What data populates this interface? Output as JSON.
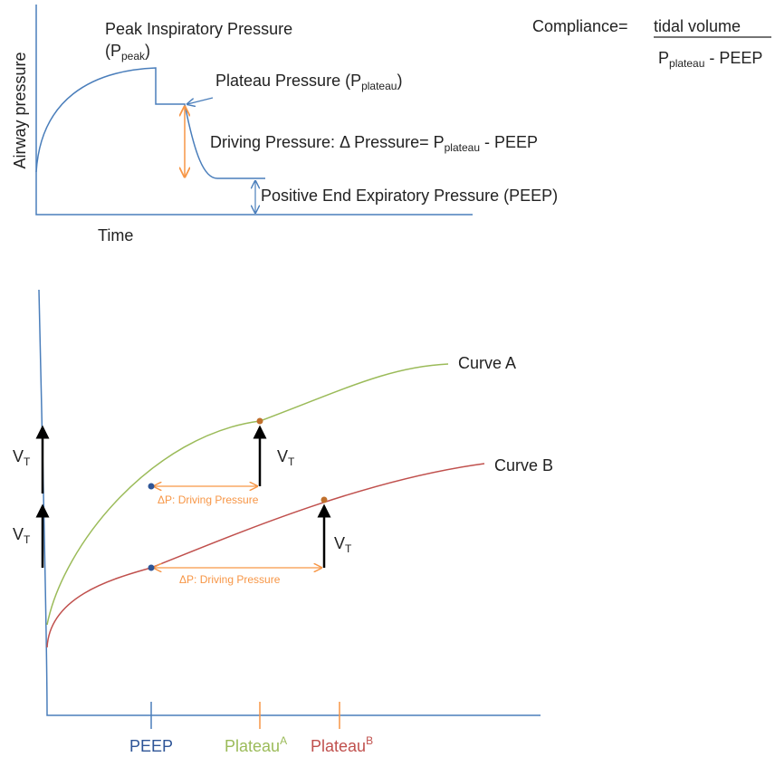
{
  "top_panel": {
    "y_axis_label": "Airway pressure",
    "x_axis_label": "Time",
    "peak": {
      "label": "Peak Inspiratory Pressure",
      "open": "(P",
      "subscript": "peak",
      "close": ")"
    },
    "plateau": {
      "label": "Plateau Pressure (P",
      "subscript": "plateau",
      "close": ")"
    },
    "driving": {
      "label": "Driving Pressure: Δ Pressure= P",
      "subscript": "plateau",
      "rest": "- PEEP"
    },
    "peep": "Positive End Expiratory Pressure (PEEP)",
    "compliance": {
      "label": "Compliance=",
      "numerator": "tidal volume",
      "denominator": "P",
      "denominator_subscript": "plateau",
      "denominator_rest": "- PEEP"
    }
  },
  "bottom_panel": {
    "curve_a": "Curve A",
    "curve_b": "Curve B",
    "vt_labels": [
      {
        "main": "V",
        "sub": "T"
      },
      {
        "main": "V",
        "sub": "T"
      },
      {
        "main": "V",
        "sub": "T"
      },
      {
        "main": "V",
        "sub": "T"
      }
    ],
    "driving_labels": [
      "ΔP: Driving Pressure",
      "ΔP: Driving Pressure"
    ],
    "x_labels": {
      "peep": "PEEP",
      "plateau_a": {
        "main": "Plateau",
        "sup": "A"
      },
      "plateau_b": {
        "main": "Plateau",
        "sup": "B"
      }
    }
  }
}
